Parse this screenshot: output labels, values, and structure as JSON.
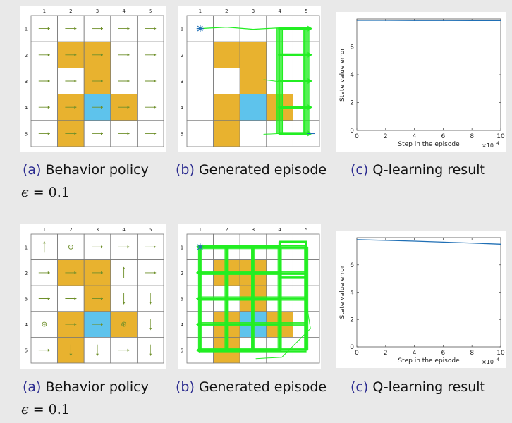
{
  "colors": {
    "forbidden": "#e8b22f",
    "target": "#5ec3ec",
    "arrow": "#6e8f2a",
    "trajectory": "#22ee22",
    "curve": "#1f6fb5"
  },
  "grid": {
    "col_labels": [
      "1",
      "2",
      "3",
      "4",
      "5"
    ],
    "row_labels": [
      "1",
      "2",
      "3",
      "4",
      "5"
    ],
    "forbidden_cells": [
      [
        1,
        1
      ],
      [
        1,
        2
      ],
      [
        2,
        2
      ],
      [
        3,
        1
      ],
      [
        3,
        3
      ],
      [
        4,
        1
      ]
    ],
    "target_cell": [
      3,
      2
    ]
  },
  "sections": [
    {
      "policy": [
        [
          "right",
          "right",
          "right",
          "right",
          "right"
        ],
        [
          "right",
          "right",
          "right",
          "right",
          "right"
        ],
        [
          "right",
          "right",
          "right",
          "right",
          "right"
        ],
        [
          "right",
          "right",
          "right",
          "right",
          "right"
        ],
        [
          "right",
          "right",
          "right",
          "right",
          "right"
        ]
      ],
      "caption_a": {
        "letter": "(a)",
        "text": "Behavior policy"
      },
      "caption_b": {
        "letter": "(b)",
        "text": "Generated episode"
      },
      "caption_c": {
        "letter": "(c)",
        "text": "Q-learning result"
      },
      "epsilon": {
        "symbol": "ϵ",
        "eq": "= 0.1"
      },
      "chart_data": {
        "type": "line",
        "xlabel": "Step in the episode",
        "ylabel": "State value error",
        "x_multiplier": "×10",
        "x_multiplier_exp": "4",
        "xlim": [
          0,
          10
        ],
        "ylim": [
          0,
          8
        ],
        "xticks": [
          "0",
          "2",
          "4",
          "6",
          "8",
          "10"
        ],
        "yticks": [
          "0",
          "2",
          "4",
          "6"
        ],
        "x": [
          0,
          2,
          4,
          6,
          8,
          10
        ],
        "y": [
          7.9,
          7.9,
          7.89,
          7.89,
          7.88,
          7.88
        ]
      }
    },
    {
      "policy": [
        [
          "up",
          "stay",
          "right",
          "right",
          "right"
        ],
        [
          "right",
          "right",
          "right",
          "up",
          "right"
        ],
        [
          "right",
          "right",
          "right",
          "down",
          "down"
        ],
        [
          "stay",
          "right",
          "right",
          "stay",
          "down"
        ],
        [
          "right",
          "down",
          "down",
          "right",
          "down"
        ]
      ],
      "caption_a": {
        "letter": "(a)",
        "text": "Behavior policy"
      },
      "caption_b": {
        "letter": "(b)",
        "text": "Generated episode"
      },
      "caption_c": {
        "letter": "(c)",
        "text": "Q-learning result"
      },
      "epsilon": {
        "symbol": "ϵ",
        "eq": "= 0.1"
      },
      "chart_data": {
        "type": "line",
        "xlabel": "Step in the episode",
        "ylabel": "State value error",
        "x_multiplier": "×10",
        "x_multiplier_exp": "4",
        "xlim": [
          0,
          10
        ],
        "ylim": [
          0,
          8
        ],
        "xticks": [
          "0",
          "2",
          "4",
          "6",
          "8",
          "10"
        ],
        "yticks": [
          "0",
          "2",
          "4",
          "6"
        ],
        "x": [
          0,
          2,
          4,
          6,
          8,
          10
        ],
        "y": [
          7.85,
          7.8,
          7.74,
          7.67,
          7.6,
          7.52
        ]
      }
    }
  ]
}
